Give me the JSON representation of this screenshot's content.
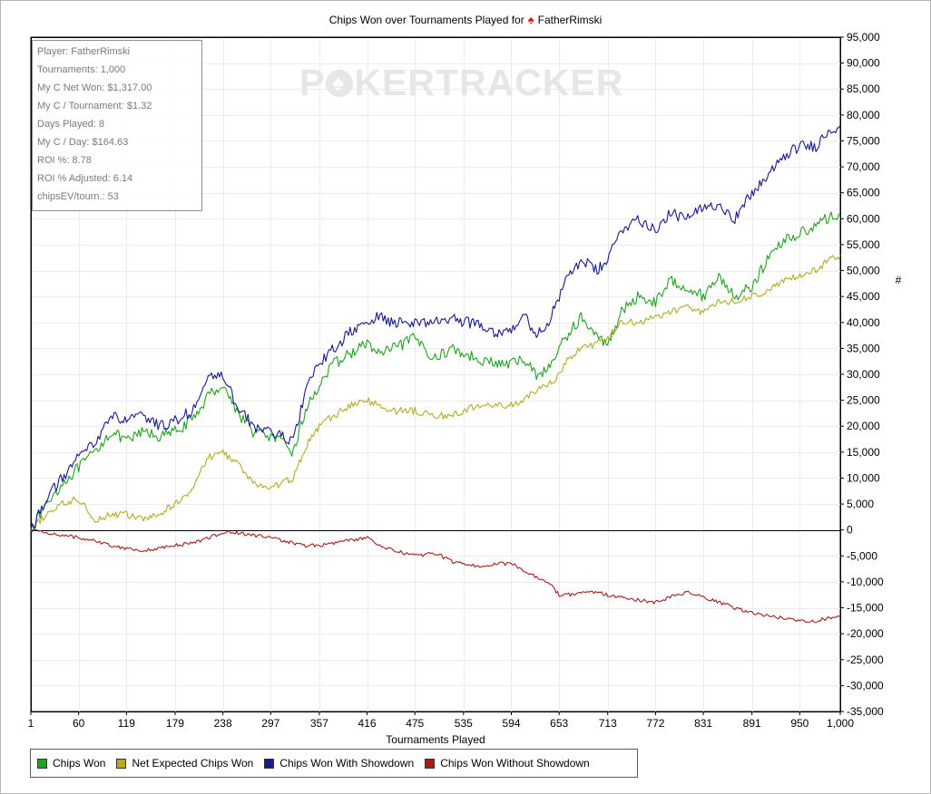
{
  "chart_data": {
    "type": "line",
    "title": "Chips Won over Tournaments Played for",
    "title_player": "FatherRimski",
    "title_icon": "spade-icon",
    "xlabel": "Tournaments Played",
    "ylabel": "#",
    "xlim": [
      1,
      1000
    ],
    "ylim": [
      -35000,
      95000
    ],
    "x_ticks": [
      "1",
      "60",
      "119",
      "179",
      "238",
      "297",
      "357",
      "416",
      "475",
      "535",
      "594",
      "653",
      "713",
      "772",
      "831",
      "891",
      "950",
      "1,000"
    ],
    "y_ticks": [
      "95,000",
      "90,000",
      "85,000",
      "80,000",
      "75,000",
      "70,000",
      "65,000",
      "60,000",
      "55,000",
      "50,000",
      "45,000",
      "40,000",
      "35,000",
      "30,000",
      "25,000",
      "20,000",
      "15,000",
      "10,000",
      "5,000",
      "0",
      "-5,000",
      "-10,000",
      "-15,000",
      "-20,000",
      "-25,000",
      "-30,000",
      "-35,000"
    ],
    "grid": true,
    "legend_position": "bottom-left",
    "series": [
      {
        "name": "Chips Won",
        "color": "#22a022",
        "x": [
          1,
          20,
          40,
          60,
          80,
          100,
          119,
          140,
          160,
          179,
          200,
          220,
          238,
          255,
          275,
          297,
          310,
          325,
          340,
          357,
          375,
          395,
          416,
          430,
          450,
          475,
          500,
          520,
          535,
          555,
          575,
          594,
          610,
          625,
          640,
          653,
          665,
          680,
          700,
          713,
          730,
          750,
          772,
          790,
          810,
          831,
          850,
          870,
          891,
          910,
          930,
          950,
          970,
          985,
          1000
        ],
        "values": [
          0,
          5000,
          9000,
          12000,
          15000,
          19000,
          17000,
          19000,
          18000,
          19000,
          21000,
          26000,
          28000,
          23000,
          19000,
          18000,
          17000,
          15000,
          23000,
          28000,
          32000,
          34000,
          36000,
          34000,
          35000,
          37000,
          33000,
          35000,
          34000,
          33000,
          32000,
          32000,
          33000,
          30000,
          31000,
          35000,
          38000,
          41000,
          37000,
          36000,
          42000,
          45000,
          44000,
          48000,
          47000,
          45000,
          49000,
          45000,
          47000,
          52000,
          56000,
          57000,
          59000,
          60000,
          61000
        ]
      },
      {
        "name": "Net Expected Chips Won",
        "color": "#b3ab28",
        "x": [
          1,
          20,
          40,
          60,
          80,
          100,
          119,
          140,
          160,
          179,
          200,
          220,
          238,
          255,
          275,
          297,
          310,
          325,
          340,
          357,
          375,
          395,
          416,
          430,
          450,
          475,
          500,
          520,
          535,
          555,
          575,
          594,
          610,
          625,
          640,
          653,
          665,
          680,
          700,
          713,
          730,
          750,
          772,
          790,
          810,
          831,
          850,
          870,
          891,
          910,
          930,
          950,
          970,
          985,
          1000
        ],
        "values": [
          0,
          3000,
          5000,
          6000,
          2000,
          3000,
          3000,
          2000,
          3000,
          5000,
          8000,
          14000,
          15000,
          13000,
          9000,
          8000,
          9000,
          10000,
          16000,
          20000,
          22000,
          24000,
          25000,
          24000,
          23000,
          23000,
          22000,
          22000,
          23000,
          24000,
          24000,
          24000,
          25000,
          27000,
          28000,
          30000,
          33000,
          35000,
          36000,
          37000,
          40000,
          40000,
          41000,
          42000,
          43000,
          42000,
          44000,
          44000,
          45000,
          46000,
          48000,
          49000,
          50000,
          52000,
          53000
        ]
      },
      {
        "name": "Chips Won With Showdown",
        "color": "#1a1a8c",
        "x": [
          1,
          20,
          40,
          60,
          80,
          100,
          119,
          140,
          160,
          179,
          200,
          220,
          238,
          255,
          275,
          297,
          310,
          325,
          340,
          357,
          375,
          395,
          416,
          430,
          450,
          475,
          500,
          520,
          535,
          555,
          575,
          594,
          610,
          625,
          640,
          653,
          665,
          680,
          700,
          713,
          730,
          750,
          772,
          790,
          810,
          831,
          850,
          870,
          891,
          910,
          930,
          950,
          970,
          985,
          1000
        ],
        "values": [
          0,
          6000,
          10000,
          14000,
          17000,
          22000,
          21000,
          22000,
          20000,
          21000,
          23000,
          29000,
          30000,
          24000,
          20000,
          19000,
          18000,
          17000,
          27000,
          32000,
          35000,
          38000,
          40000,
          41000,
          40000,
          40000,
          40000,
          41000,
          40000,
          40000,
          38000,
          39000,
          41000,
          38000,
          40000,
          45000,
          49000,
          52000,
          50000,
          52000,
          58000,
          60000,
          58000,
          61000,
          60000,
          62000,
          63000,
          60000,
          65000,
          68000,
          72000,
          74000,
          74000,
          77000,
          78000
        ]
      },
      {
        "name": "Chips Won Without Showdown",
        "color": "#a01e1e",
        "x": [
          1,
          20,
          40,
          60,
          80,
          100,
          119,
          140,
          160,
          179,
          200,
          220,
          238,
          255,
          275,
          297,
          310,
          325,
          340,
          357,
          375,
          395,
          416,
          430,
          450,
          475,
          500,
          520,
          535,
          555,
          575,
          594,
          610,
          625,
          640,
          653,
          665,
          680,
          700,
          713,
          730,
          750,
          772,
          790,
          810,
          831,
          850,
          870,
          891,
          910,
          930,
          950,
          970,
          985,
          1000
        ],
        "values": [
          0,
          -500,
          -1000,
          -1500,
          -2000,
          -3000,
          -3500,
          -4000,
          -3500,
          -3000,
          -2500,
          -1500,
          -500,
          -500,
          -1000,
          -1500,
          -2000,
          -2500,
          -3000,
          -3000,
          -2500,
          -2000,
          -1500,
          -3000,
          -4000,
          -5000,
          -4500,
          -6000,
          -6500,
          -7000,
          -6500,
          -6500,
          -8000,
          -9000,
          -10000,
          -12500,
          -12500,
          -12000,
          -12000,
          -12500,
          -13000,
          -13500,
          -14000,
          -13000,
          -12000,
          -13000,
          -14000,
          -15000,
          -16000,
          -16500,
          -17000,
          -17500,
          -17500,
          -17000,
          -16500
        ]
      }
    ]
  },
  "stats_box": {
    "lines": [
      "Player: FatherRimski",
      "Tournaments: 1,000",
      "My C Net Won: $1,317.00",
      "My C / Tournament: $1.32",
      "Days Played: 8",
      "My C / Day: $164.63",
      "ROI %: 8.78",
      "ROI % Adjusted: 6.14",
      "chipsEV/tourn.: 53"
    ]
  },
  "watermark": {
    "text_before": "P",
    "text_after": "KERTRACKER",
    "icon": "spade-chip-icon"
  }
}
